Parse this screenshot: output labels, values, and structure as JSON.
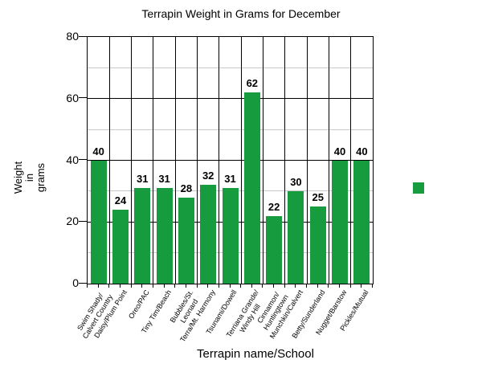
{
  "chart_data": {
    "type": "bar",
    "title": "Terrapin Weight in Grams for December",
    "xlabel": "Terrapin name/School",
    "ylabel_lines": [
      "Weight",
      "in",
      "grams"
    ],
    "categories": [
      [
        "Swim Shady/",
        "Calvert Country"
      ],
      [
        "Daisy/Plum Point"
      ],
      [
        "Oreo/PAC"
      ],
      [
        "Tiny Tim/Beach"
      ],
      [
        "Bubbles/St.",
        "Leonard"
      ],
      [
        "Terra/Mt. Harmony"
      ],
      [
        "Tsunami/Dowell"
      ],
      [
        "Terriana Grande/",
        "Windy Hill"
      ],
      [
        "Cinnamon/",
        "Huntingtown"
      ],
      [
        "Munchkin/Calvert"
      ],
      [
        "Betty/Sunderland"
      ],
      [
        "Nugget/Barstow"
      ],
      [
        "Pickles/Mutual"
      ]
    ],
    "values": [
      40,
      24,
      31,
      31,
      28,
      32,
      31,
      62,
      22,
      30,
      25,
      40,
      40
    ],
    "ylim": [
      0,
      80
    ],
    "y_ticks": [
      0,
      20,
      40,
      60,
      80
    ],
    "y_major_step": 20,
    "y_minor_step": 10,
    "grid": true,
    "legend": {
      "position": "right",
      "label": ""
    },
    "colors": {
      "bar": "#169C3E",
      "grid_major": "#000000",
      "grid_minor": "#c8c8c8",
      "axis": "#000000",
      "text": "#000000",
      "background": "#ffffff"
    }
  }
}
